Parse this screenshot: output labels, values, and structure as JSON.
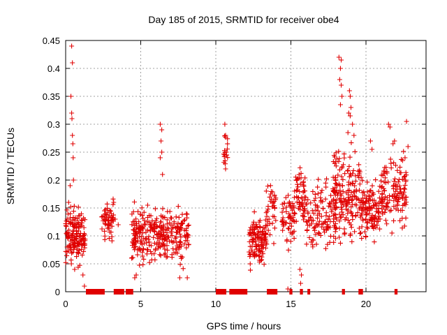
{
  "chart_data": {
    "type": "scatter",
    "title": "Day 185 of 2015, SRMTID for receiver obe4",
    "xlabel": "GPS time / hours",
    "ylabel": "SRMTID / TECUs",
    "xlim": [
      0,
      24
    ],
    "ylim": [
      0,
      0.45
    ],
    "xticks": [
      "0",
      "5",
      "10",
      "15",
      "20"
    ],
    "yticks": [
      "0",
      "0.05",
      "0.1",
      "0.15",
      "0.2",
      "0.25",
      "0.3",
      "0.35",
      "0.4",
      "0.45"
    ],
    "grid": true,
    "series": [
      {
        "name": "SRMTID",
        "color": "#e00000",
        "marker": "plus",
        "clusters": [
          {
            "x": [
              0.0,
              1.3
            ],
            "y": [
              0.03,
              0.17
            ],
            "n": 150
          },
          {
            "x": [
              2.4,
              3.2
            ],
            "y": [
              0.08,
              0.17
            ],
            "n": 55
          },
          {
            "x": [
              4.4,
              6.0
            ],
            "y": [
              0.04,
              0.17
            ],
            "n": 140
          },
          {
            "x": [
              6.0,
              8.2
            ],
            "y": [
              0.03,
              0.17
            ],
            "n": 170
          },
          {
            "x": [
              10.5,
              10.8
            ],
            "y": [
              0.2,
              0.3
            ],
            "n": 16
          },
          {
            "x": [
              12.2,
              13.4
            ],
            "y": [
              0.03,
              0.15
            ],
            "n": 120
          },
          {
            "x": [
              13.3,
              14.0
            ],
            "y": [
              0.07,
              0.23
            ],
            "n": 40
          },
          {
            "x": [
              14.4,
              15.3
            ],
            "y": [
              0.06,
              0.2
            ],
            "n": 60
          },
          {
            "x": [
              15.3,
              16.0
            ],
            "y": [
              0.08,
              0.25
            ],
            "n": 55
          },
          {
            "x": [
              16.0,
              18.0
            ],
            "y": [
              0.05,
              0.22
            ],
            "n": 120
          },
          {
            "x": [
              17.8,
              19.6
            ],
            "y": [
              0.06,
              0.3
            ],
            "n": 170
          },
          {
            "x": [
              19.6,
              21.0
            ],
            "y": [
              0.07,
              0.22
            ],
            "n": 120
          },
          {
            "x": [
              21.0,
              22.7
            ],
            "y": [
              0.08,
              0.27
            ],
            "n": 130
          }
        ],
        "points": [
          [
            0.1,
            0.13
          ],
          [
            0.2,
            0.16
          ],
          [
            0.3,
            0.19
          ],
          [
            0.35,
            0.35
          ],
          [
            0.4,
            0.44
          ],
          [
            0.45,
            0.41
          ],
          [
            0.4,
            0.32
          ],
          [
            0.42,
            0.31
          ],
          [
            0.45,
            0.28
          ],
          [
            0.48,
            0.265
          ],
          [
            0.5,
            0.24
          ],
          [
            0.52,
            0.2
          ],
          [
            0.38,
            0.05
          ],
          [
            0.6,
            0.04
          ],
          [
            1.15,
            0.03
          ],
          [
            1.25,
            0.01
          ],
          [
            3.3,
            0.13
          ],
          [
            3.2,
            0.16
          ],
          [
            3.5,
            0.12
          ],
          [
            4.4,
            0.06
          ],
          [
            4.6,
            0.025
          ],
          [
            4.7,
            0.03
          ],
          [
            6.3,
            0.3
          ],
          [
            6.4,
            0.29
          ],
          [
            6.35,
            0.27
          ],
          [
            6.4,
            0.25
          ],
          [
            6.3,
            0.24
          ],
          [
            6.45,
            0.21
          ],
          [
            7.6,
            0.025
          ],
          [
            8.1,
            0.025
          ],
          [
            10.6,
            0.3
          ],
          [
            10.65,
            0.28
          ],
          [
            10.7,
            0.25
          ],
          [
            10.6,
            0.245
          ],
          [
            10.65,
            0.22
          ],
          [
            15.6,
            0.04
          ],
          [
            15.7,
            0.03
          ],
          [
            15.65,
            0.015
          ],
          [
            14.8,
            0.005
          ],
          [
            18.2,
            0.42
          ],
          [
            18.35,
            0.415
          ],
          [
            18.3,
            0.4
          ],
          [
            18.25,
            0.38
          ],
          [
            18.35,
            0.37
          ],
          [
            18.4,
            0.35
          ],
          [
            18.3,
            0.335
          ],
          [
            18.9,
            0.36
          ],
          [
            18.95,
            0.35
          ],
          [
            19.0,
            0.33
          ],
          [
            18.85,
            0.32
          ],
          [
            18.95,
            0.315
          ],
          [
            19.1,
            0.3
          ],
          [
            18.8,
            0.285
          ],
          [
            19.2,
            0.28
          ],
          [
            20.3,
            0.27
          ],
          [
            20.4,
            0.255
          ],
          [
            21.5,
            0.3
          ],
          [
            21.6,
            0.295
          ],
          [
            21.8,
            0.265
          ],
          [
            21.9,
            0.27
          ],
          [
            22.7,
            0.305
          ],
          [
            22.8,
            0.26
          ],
          [
            22.6,
            0.24
          ]
        ],
        "zero_segments": [
          [
            1.35,
            2.6
          ],
          [
            3.2,
            3.9
          ],
          [
            4.0,
            4.5
          ],
          [
            10.0,
            10.7
          ],
          [
            10.9,
            12.1
          ],
          [
            13.4,
            14.1
          ],
          [
            14.9,
            15.1
          ],
          [
            15.6,
            15.8
          ],
          [
            16.1,
            16.2
          ],
          [
            18.4,
            18.6
          ],
          [
            19.5,
            19.8
          ],
          [
            21.9,
            22.1
          ]
        ]
      }
    ]
  }
}
